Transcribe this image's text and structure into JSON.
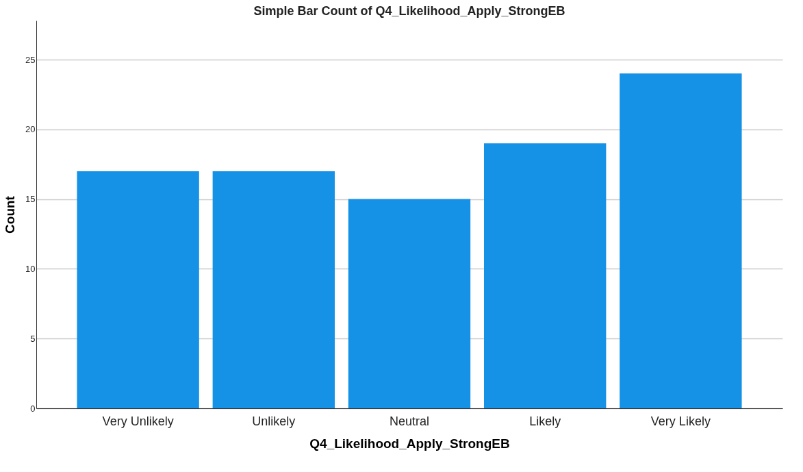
{
  "chart_data": {
    "type": "bar",
    "title": "Simple Bar Count of Q4_Likelihood_Apply_StrongEB",
    "xlabel": "Q4_Likelihood_Apply_StrongEB",
    "ylabel": "Count",
    "categories": [
      "Very Unlikely",
      "Unlikely",
      "Neutral",
      "Likely",
      "Very Likely"
    ],
    "values": [
      17,
      17,
      15,
      19,
      24
    ],
    "color": "#1591e6",
    "ylim": [
      0,
      27.8
    ],
    "yticks": [
      0,
      5,
      10,
      15,
      20,
      25
    ],
    "grid": "y"
  }
}
